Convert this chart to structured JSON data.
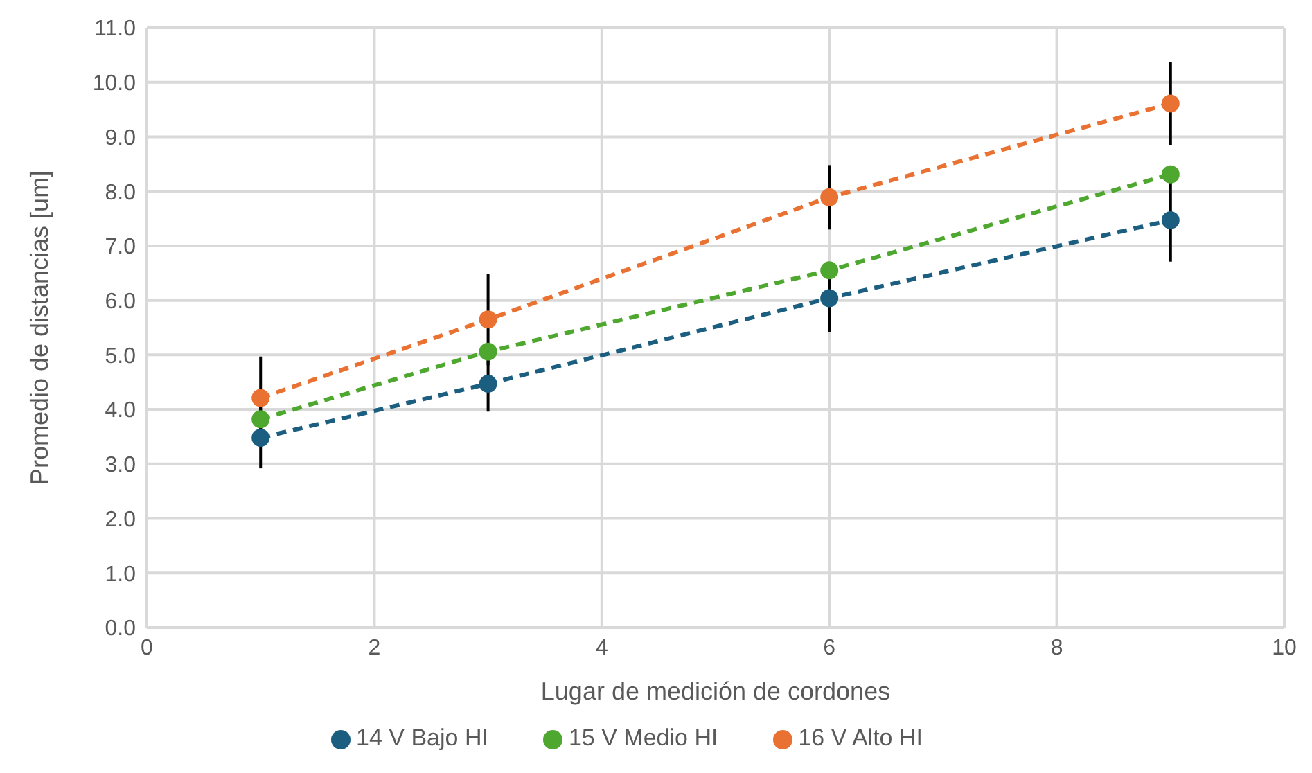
{
  "chart_data": {
    "type": "line",
    "xlabel": "Lugar de medición  de cordones",
    "ylabel": "Promedio de distancias [um]",
    "x": [
      1,
      3,
      6,
      9
    ],
    "series": [
      {
        "name": "14 V Bajo HI",
        "color": "#1b5e80",
        "values": [
          3.48,
          4.47,
          6.04,
          7.47
        ],
        "errors": [
          0.56,
          0.51,
          0.62,
          0.76
        ]
      },
      {
        "name": "15 V Medio HI",
        "color": "#4ea72e",
        "values": [
          3.82,
          5.06,
          6.55,
          8.31
        ]
      },
      {
        "name": "16 V Alto HI",
        "color": "#e97132",
        "values": [
          4.21,
          5.65,
          7.89,
          9.61
        ],
        "errors": [
          0.76,
          0.84,
          0.59,
          0.76
        ]
      }
    ],
    "xlim": [
      0,
      10
    ],
    "xticks": [
      0,
      2,
      4,
      6,
      8,
      10
    ],
    "ylim": [
      0,
      11
    ],
    "yticks": [
      {
        "value": 0,
        "label": "0.0"
      },
      {
        "value": 1,
        "label": "1.0"
      },
      {
        "value": 2,
        "label": "2.0"
      },
      {
        "value": 3,
        "label": "3.0"
      },
      {
        "value": 4,
        "label": "4.0"
      },
      {
        "value": 5,
        "label": "5.0"
      },
      {
        "value": 6,
        "label": "6.0"
      },
      {
        "value": 7,
        "label": "7.0"
      },
      {
        "value": 8,
        "label": "8.0"
      },
      {
        "value": 9,
        "label": "9.0"
      },
      {
        "value": 10,
        "label": "10.0"
      },
      {
        "value": 11,
        "label": "11.0"
      }
    ],
    "grid": true,
    "legend": "bottom",
    "marker": "circle",
    "line_style": "dashed"
  }
}
